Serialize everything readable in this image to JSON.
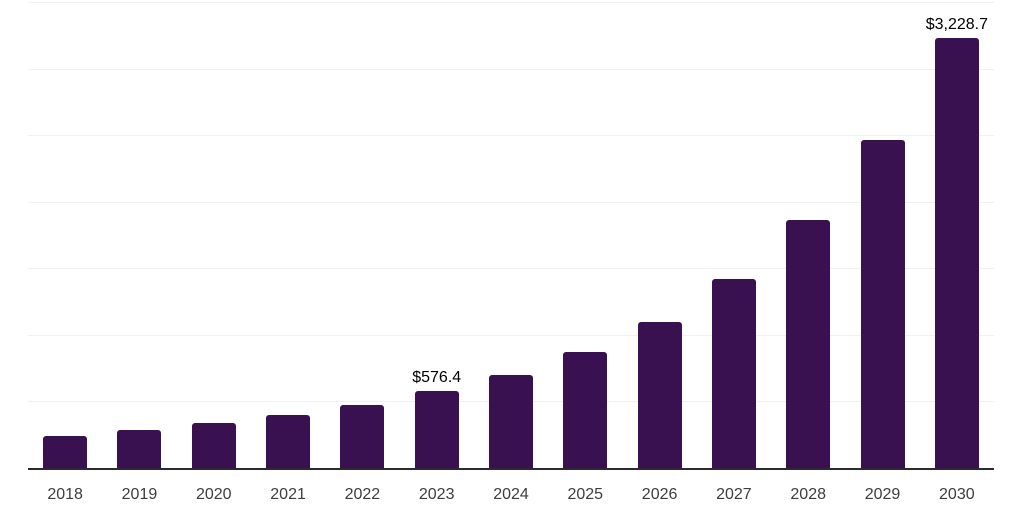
{
  "chart_data": {
    "type": "bar",
    "title": "",
    "xlabel": "",
    "ylabel": "",
    "categories": [
      "2018",
      "2019",
      "2020",
      "2021",
      "2022",
      "2023",
      "2024",
      "2025",
      "2026",
      "2027",
      "2028",
      "2029",
      "2030"
    ],
    "values": [
      240,
      285,
      340,
      400,
      470,
      576.4,
      695,
      872,
      1100,
      1420,
      1866,
      2460,
      3228.7
    ],
    "bar_labels": [
      null,
      null,
      null,
      null,
      null,
      "$576.4",
      null,
      null,
      null,
      null,
      null,
      null,
      "$3,228.7"
    ],
    "ylim": [
      0,
      3500
    ],
    "gridline_interval": 500,
    "grid": true,
    "legend": false,
    "colors": {
      "bar": "#3a1150",
      "axis_line": "#2b2b2b",
      "gridline": "#f1f1f1",
      "tick_label": "#3d3d3d",
      "data_label": "#000000",
      "background": "#ffffff"
    }
  }
}
